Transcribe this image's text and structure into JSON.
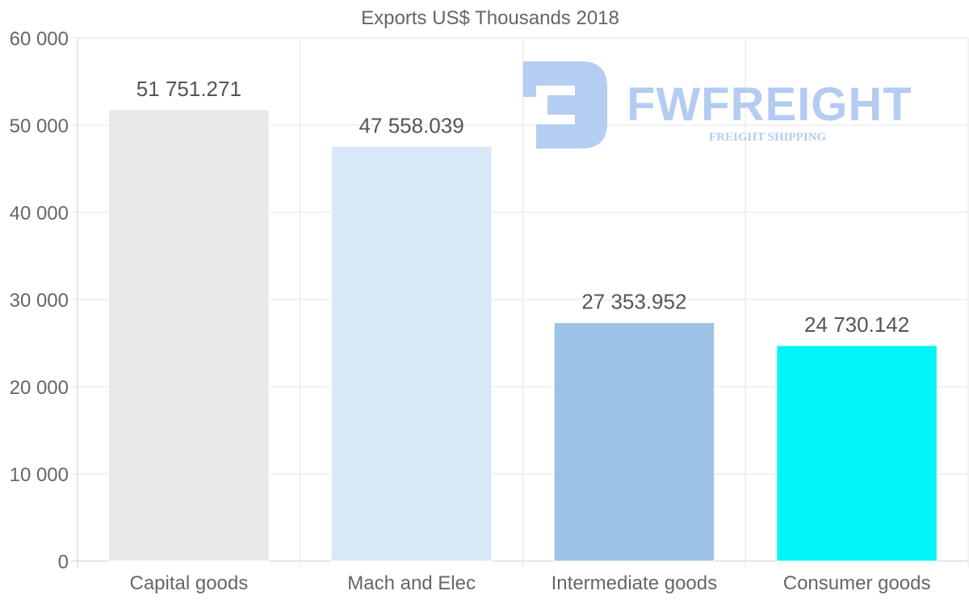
{
  "chart_data": {
    "type": "bar",
    "title": "Exports US$ Thousands 2018",
    "categories": [
      "Capital goods",
      "Mach and Elec",
      "Intermediate goods",
      "Consumer goods"
    ],
    "values": [
      51751.271,
      47558.039,
      27353.952,
      24730.142
    ],
    "value_labels": [
      "51 751.271",
      "47 558.039",
      "27 353.952",
      "24 730.142"
    ],
    "colors": [
      "#e8e8e8",
      "#d8e8f8",
      "#9cc3e6",
      "#00f6f6"
    ],
    "ylim": [
      0,
      60000
    ],
    "y_ticks": [
      0,
      10000,
      20000,
      30000,
      40000,
      50000,
      60000
    ],
    "y_tick_labels": [
      "0",
      "10 000",
      "20 000",
      "30 000",
      "40 000",
      "50 000",
      "60 000"
    ],
    "xlabel": "",
    "ylabel": "",
    "grid": true
  },
  "watermark": {
    "brand": "FWFREIGHT",
    "tagline": "FREIGHT SHIPPING",
    "color": "#a8c4f0"
  }
}
